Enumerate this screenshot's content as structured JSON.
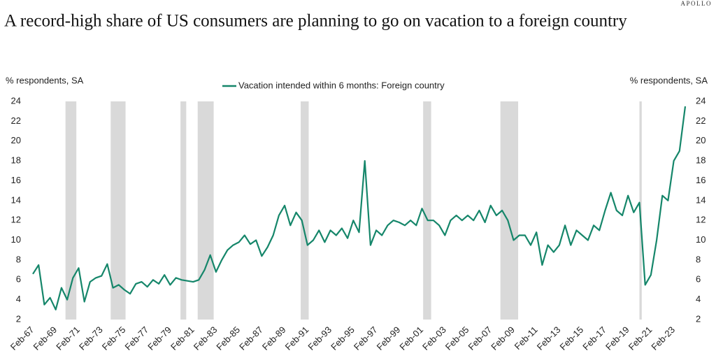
{
  "brand": "APOLLO",
  "chart_data": {
    "type": "line",
    "title": "A record-high share of US consumers are planning to go on vacation to a foreign country",
    "y_label": "% respondents, SA",
    "y2_label": "% respondents, SA",
    "categories": [
      "Feb-67",
      null,
      null,
      null,
      "Feb-69",
      null,
      null,
      null,
      "Feb-71",
      null,
      null,
      null,
      "Feb-73",
      null,
      null,
      null,
      "Feb-75",
      null,
      null,
      null,
      "Feb-77",
      null,
      null,
      null,
      "Feb-79",
      null,
      null,
      null,
      "Feb-81",
      null,
      null,
      null,
      "Feb-83",
      null,
      null,
      null,
      "Feb-85",
      null,
      null,
      null,
      "Feb-87",
      null,
      null,
      null,
      "Feb-89",
      null,
      null,
      null,
      "Feb-91",
      null,
      null,
      null,
      "Feb-93",
      null,
      null,
      null,
      "Feb-95",
      null,
      null,
      null,
      "Feb-97",
      null,
      null,
      null,
      "Feb-99",
      null,
      null,
      null,
      "Feb-01",
      null,
      null,
      null,
      "Feb-03",
      null,
      null,
      null,
      "Feb-05",
      null,
      null,
      null,
      "Feb-07",
      null,
      null,
      null,
      "Feb-09",
      null,
      null,
      null,
      "Feb-11",
      null,
      null,
      null,
      "Feb-13",
      null,
      null,
      null,
      "Feb-15",
      null,
      null,
      null,
      "Feb-17",
      null,
      null,
      null,
      "Feb-19",
      null,
      null,
      null,
      "Feb-21",
      null,
      null,
      null,
      "Feb-23",
      null,
      null
    ],
    "series": [
      {
        "name": "Vacation intended within 6 months: Foreign country",
        "color": "#15866a",
        "values": [
          6.6,
          7.5,
          3.5,
          4.2,
          3.0,
          5.2,
          4.0,
          6.2,
          7.2,
          3.8,
          5.8,
          6.2,
          6.4,
          7.6,
          5.2,
          5.5,
          5.0,
          4.6,
          5.6,
          5.8,
          5.3,
          6.0,
          5.6,
          6.5,
          5.5,
          6.2,
          6.0,
          5.9,
          5.8,
          6.0,
          7.0,
          8.5,
          6.8,
          8.0,
          9.0,
          9.5,
          9.8,
          10.5,
          9.6,
          10.0,
          8.4,
          9.3,
          10.5,
          12.5,
          13.5,
          11.5,
          12.8,
          12.0,
          9.5,
          10.0,
          11.0,
          9.8,
          11.0,
          10.5,
          11.2,
          10.2,
          12.0,
          10.8,
          18.0,
          9.5,
          11.0,
          10.5,
          11.5,
          12.0,
          11.8,
          11.5,
          12.0,
          11.5,
          13.2,
          12.0,
          12.0,
          11.5,
          10.5,
          12.0,
          12.5,
          12.0,
          12.5,
          12.0,
          13.0,
          11.8,
          13.5,
          12.5,
          13.0,
          12.0,
          10.0,
          10.5,
          10.5,
          9.5,
          10.8,
          7.5,
          9.5,
          8.8,
          9.5,
          11.5,
          9.5,
          11.0,
          10.5,
          10.0,
          11.5,
          11.0,
          13.0,
          14.8,
          13.0,
          12.5,
          14.5,
          12.8,
          13.8,
          5.5,
          6.5,
          10.0,
          14.5,
          14.0,
          18.0,
          19.0,
          23.5
        ]
      }
    ],
    "recessions": [
      [
        5.7,
        7.6
      ],
      [
        13.6,
        16.2
      ],
      [
        25.8,
        26.8
      ],
      [
        28.8,
        31.6
      ],
      [
        46.8,
        48.2
      ],
      [
        68.2,
        69.6
      ],
      [
        81.7,
        84.8
      ],
      [
        106.0,
        106.4
      ]
    ],
    "recession_color": "#d9d9d9",
    "ylim": [
      2,
      24
    ],
    "yticks": [
      2,
      4,
      6,
      8,
      10,
      12,
      14,
      16,
      18,
      20,
      22,
      24
    ],
    "y2lim": [
      2,
      24
    ],
    "y2ticks": [
      2,
      4,
      6,
      8,
      10,
      12,
      14,
      16,
      18,
      20,
      22,
      24
    ],
    "legend": "top"
  }
}
